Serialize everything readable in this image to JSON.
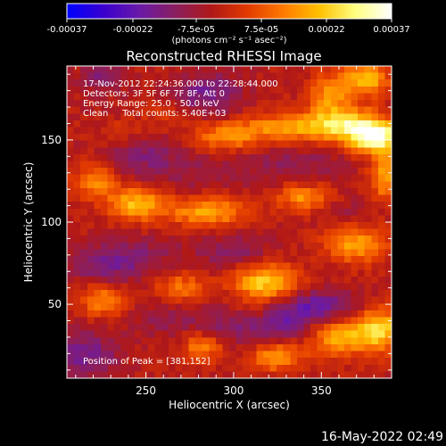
{
  "colorbar": {
    "tick_labels": [
      "-0.00037",
      "-0.00022",
      "-7.5e-05",
      "7.5e-05",
      "0.00022",
      "0.00037"
    ],
    "range": [
      -0.00037,
      0.00037
    ],
    "units_label": "(photons cm⁻² s⁻¹ asec⁻²)",
    "colormap": [
      "#0000ff",
      "#3a00d0",
      "#6a1aa8",
      "#8a1e60",
      "#b01818",
      "#e23a00",
      "#ff7a00",
      "#ffc000",
      "#ffff80",
      "#ffffff"
    ]
  },
  "title": "Reconstructed RHESSI Image",
  "annotations": {
    "time_range": "17-Nov-2012 22:24:36.000 to 22:28:44.000",
    "detectors": "Detectors: 3F 5F 6F 7F 8F, Att 0",
    "energy": "Energy Range: 25.0 - 50.0 keV",
    "clean": "Clean     Total counts: 5.40E+03",
    "peak": "Position of Peak = [381,152]"
  },
  "footer": {
    "timestamp": "16-May-2022 02:49"
  },
  "chart_data": {
    "type": "heatmap",
    "title": "Reconstructed RHESSI Image",
    "xlabel": "Heliocentric X (arcsec)",
    "ylabel": "Heliocentric Y (arcsec)",
    "xlim": [
      205,
      390
    ],
    "ylim": [
      5,
      195
    ],
    "x_ticks": [
      250,
      300,
      350
    ],
    "y_ticks": [
      50,
      100,
      150
    ],
    "peak_position": [
      381,
      152
    ],
    "value_range": [
      -0.00037,
      0.00037
    ],
    "blobs": [
      {
        "x": 381,
        "y": 152,
        "sx": 11,
        "sy": 7,
        "v": 0.00037
      },
      {
        "x": 362,
        "y": 160,
        "sx": 14,
        "sy": 7,
        "v": 0.00025
      },
      {
        "x": 330,
        "y": 158,
        "sx": 18,
        "sy": 6,
        "v": 0.00018
      },
      {
        "x": 295,
        "y": 152,
        "sx": 14,
        "sy": 6,
        "v": 0.00017
      },
      {
        "x": 355,
        "y": 178,
        "sx": 8,
        "sy": 8,
        "v": 0.00018
      },
      {
        "x": 375,
        "y": 187,
        "sx": 9,
        "sy": 7,
        "v": 0.00024
      },
      {
        "x": 386,
        "y": 128,
        "sx": 6,
        "sy": 10,
        "v": 0.0002
      },
      {
        "x": 222,
        "y": 125,
        "sx": 9,
        "sy": 8,
        "v": 0.00016
      },
      {
        "x": 245,
        "y": 111,
        "sx": 11,
        "sy": 7,
        "v": 0.00024
      },
      {
        "x": 240,
        "y": 155,
        "sx": 12,
        "sy": 7,
        "v": 0.00012
      },
      {
        "x": 285,
        "y": 106,
        "sx": 15,
        "sy": 6,
        "v": 0.00021
      },
      {
        "x": 340,
        "y": 115,
        "sx": 10,
        "sy": 6,
        "v": 0.00018
      },
      {
        "x": 370,
        "y": 87,
        "sx": 12,
        "sy": 8,
        "v": 0.0002
      },
      {
        "x": 318,
        "y": 63,
        "sx": 13,
        "sy": 8,
        "v": 0.00026
      },
      {
        "x": 270,
        "y": 60,
        "sx": 10,
        "sy": 6,
        "v": 0.00015
      },
      {
        "x": 225,
        "y": 52,
        "sx": 9,
        "sy": 7,
        "v": 0.00016
      },
      {
        "x": 312,
        "y": 45,
        "sx": 10,
        "sy": 6,
        "v": 0.00012
      },
      {
        "x": 360,
        "y": 30,
        "sx": 14,
        "sy": 8,
        "v": 0.00022
      },
      {
        "x": 383,
        "y": 35,
        "sx": 9,
        "sy": 9,
        "v": 0.00025
      },
      {
        "x": 282,
        "y": 24,
        "sx": 8,
        "sy": 6,
        "v": 0.00016
      },
      {
        "x": 324,
        "y": 18,
        "sx": 10,
        "sy": 6,
        "v": 0.00019
      },
      {
        "x": 260,
        "y": 165,
        "sx": 10,
        "sy": 8,
        "v": 8e-05
      },
      {
        "x": 248,
        "y": 147,
        "sx": 16,
        "sy": 14,
        "v": -0.00012
      },
      {
        "x": 285,
        "y": 178,
        "sx": 14,
        "sy": 9,
        "v": -0.00014
      },
      {
        "x": 225,
        "y": 188,
        "sx": 8,
        "sy": 6,
        "v": -0.00012
      },
      {
        "x": 230,
        "y": 75,
        "sx": 18,
        "sy": 8,
        "v": -0.00014
      },
      {
        "x": 300,
        "y": 82,
        "sx": 14,
        "sy": 7,
        "v": -0.0001
      },
      {
        "x": 320,
        "y": 40,
        "sx": 24,
        "sy": 9,
        "v": -0.00018
      },
      {
        "x": 350,
        "y": 50,
        "sx": 16,
        "sy": 6,
        "v": -0.00013
      },
      {
        "x": 260,
        "y": 40,
        "sx": 14,
        "sy": 7,
        "v": -6e-05
      },
      {
        "x": 215,
        "y": 20,
        "sx": 14,
        "sy": 10,
        "v": -0.00014
      },
      {
        "x": 335,
        "y": 135,
        "sx": 22,
        "sy": 8,
        "v": -7e-05
      },
      {
        "x": 280,
        "y": 130,
        "sx": 20,
        "sy": 7,
        "v": -5e-05
      },
      {
        "x": 365,
        "y": 105,
        "sx": 12,
        "sy": 6,
        "v": -5e-05
      },
      {
        "x": 255,
        "y": 85,
        "sx": 15,
        "sy": 6,
        "v": -4e-05
      }
    ]
  }
}
